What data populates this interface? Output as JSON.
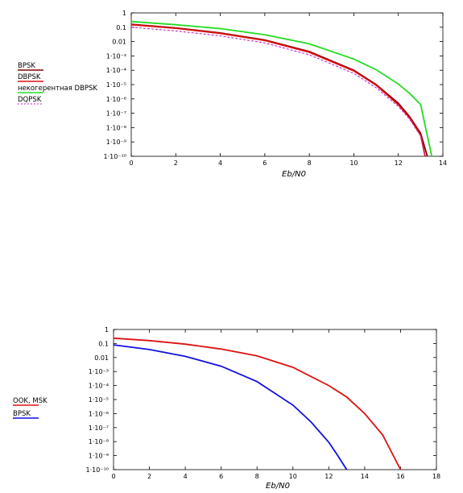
{
  "chart_data": [
    {
      "type": "line",
      "x_scale": "linear",
      "y_scale": "log",
      "xlim": [
        0,
        14
      ],
      "ylim": [
        1e-10,
        1
      ],
      "x_ticks": [
        "0",
        "2",
        "4",
        "6",
        "8",
        "10",
        "12",
        "14"
      ],
      "y_ticks": [
        "1",
        "0.1",
        "0.01",
        "1·10⁻³",
        "1·10⁻⁴",
        "1·10⁻⁵",
        "1·10⁻⁶",
        "1·10⁻⁷",
        "1·10⁻⁸",
        "1·10⁻⁹",
        "1·10⁻¹⁰"
      ],
      "xlabel": "Eb/N0",
      "grid": false,
      "legend_position": "left",
      "legend": [
        {
          "text": "BPSK",
          "color": "#800000",
          "dash": "solid"
        },
        {
          "text": "DBPSK",
          "color": "#dd1111",
          "dash": "solid"
        },
        {
          "text": "некогерентная DBPSK",
          "color": "#22dd22",
          "dash": "solid"
        },
        {
          "text": "DQPSK",
          "color": "#cc22cc",
          "dash": "dot"
        }
      ],
      "series": [
        {
          "color": "#22dd22",
          "dash": "solid",
          "x": [
            0,
            2,
            4,
            6,
            8,
            10,
            11,
            12,
            12.5,
            13,
            13.5
          ],
          "y": [
            0.25,
            0.15,
            0.08,
            0.03,
            0.007,
            0.0006,
            0.00011,
            1.1e-05,
            2.5e-06,
            4e-07,
            1e-10
          ]
        },
        {
          "color": "#800000",
          "dash": "solid",
          "x": [
            0,
            2,
            4,
            6,
            8,
            10,
            11,
            12,
            12.5,
            13,
            13.3
          ],
          "y": [
            0.16,
            0.09,
            0.04,
            0.013,
            0.002,
            0.0001,
            1e-05,
            5e-07,
            6e-08,
            4e-09,
            1e-10
          ]
        },
        {
          "color": "#dd1111",
          "dash": "solid",
          "x": [
            0,
            2,
            4,
            6,
            8,
            10,
            11,
            12,
            12.5,
            13,
            13.2
          ],
          "y": [
            0.15,
            0.085,
            0.037,
            0.012,
            0.0018,
            9e-05,
            9e-06,
            4e-07,
            5e-08,
            3e-09,
            1e-10
          ]
        },
        {
          "color": "#cc22cc",
          "dash": "dot",
          "x": [
            0,
            2,
            4,
            6,
            8,
            10,
            11,
            12,
            12.5,
            13,
            13.2
          ],
          "y": [
            0.1,
            0.055,
            0.025,
            0.008,
            0.0012,
            6e-05,
            6e-06,
            3e-07,
            4e-08,
            2.5e-09,
            1e-10
          ]
        }
      ]
    },
    {
      "type": "line",
      "x_scale": "linear",
      "y_scale": "log",
      "xlim": [
        0,
        18
      ],
      "ylim": [
        1e-10,
        1
      ],
      "x_ticks": [
        "0",
        "2",
        "4",
        "6",
        "8",
        "10",
        "12",
        "14",
        "16",
        "18"
      ],
      "y_ticks": [
        "1",
        "0.1",
        "0.01",
        "1·10⁻³",
        "1·10⁻⁴",
        "1·10⁻⁵",
        "1·10⁻⁶",
        "1·10⁻⁷",
        "1·10⁻⁸",
        "1·10⁻⁹",
        "1·10⁻¹⁰"
      ],
      "xlabel": "Eb/N0",
      "grid": false,
      "legend_position": "left",
      "legend": [
        {
          "text": "OOK, MSK",
          "color": "#dd1111",
          "dash": "solid"
        },
        {
          "text": "BPSK",
          "color": "#1111dd",
          "dash": "solid"
        }
      ],
      "series": [
        {
          "color": "#dd1111",
          "dash": "solid",
          "x": [
            0,
            2,
            4,
            6,
            8,
            10,
            12,
            13,
            14,
            15,
            16
          ],
          "y": [
            0.24,
            0.16,
            0.09,
            0.04,
            0.013,
            0.002,
            0.0001,
            1.5e-05,
            1e-06,
            3e-08,
            1e-10
          ]
        },
        {
          "color": "#1111dd",
          "dash": "solid",
          "x": [
            0,
            2,
            4,
            6,
            8,
            10,
            11,
            12,
            12.5,
            13
          ],
          "y": [
            0.08,
            0.037,
            0.012,
            0.0024,
            0.00019,
            4e-06,
            2.6e-07,
            9e-09,
            1e-09,
            1e-10
          ]
        }
      ]
    }
  ]
}
